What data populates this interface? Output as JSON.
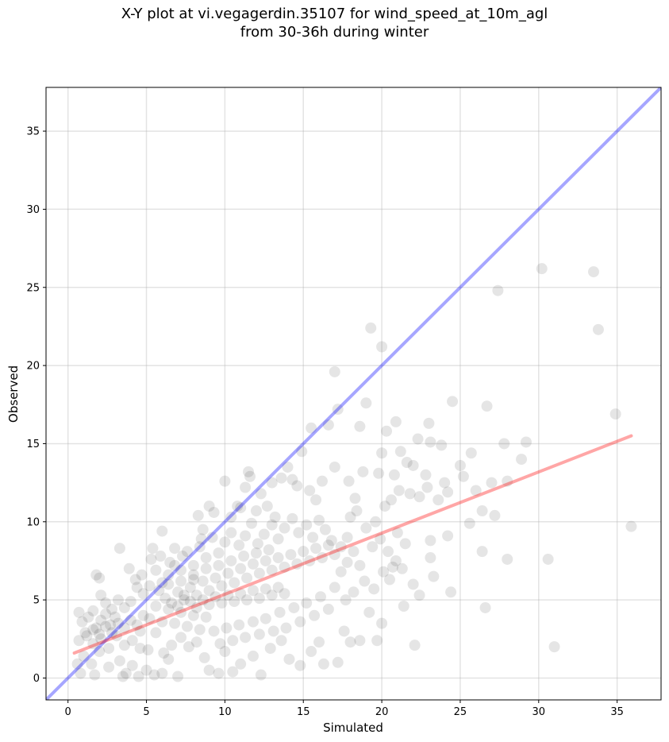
{
  "chart_data": {
    "type": "scatter",
    "title_line1": "X-Y plot at vi.vegagerdin.35107 for wind_speed_at_10m_agl",
    "title_line2": "from 30-36h during winter",
    "xlabel": "Simulated",
    "ylabel": "Observed",
    "xlim": [
      -1.4,
      37.8
    ],
    "ylim": [
      -1.4,
      37.8
    ],
    "xticks": [
      0,
      5,
      10,
      15,
      20,
      25,
      30,
      35
    ],
    "yticks": [
      0,
      5,
      10,
      15,
      20,
      25,
      30,
      35
    ],
    "grid": true,
    "point_color": "#000000",
    "point_alpha": 0.1,
    "identity_line": {
      "color": "#0000ff",
      "alpha": 0.35,
      "from": [
        -1.4,
        -1.4
      ],
      "to": [
        37.8,
        37.8
      ]
    },
    "fit_line": {
      "color": "#ff0000",
      "alpha": 0.35,
      "from": [
        0.4,
        1.6
      ],
      "to": [
        35.9,
        15.5
      ]
    },
    "points": [
      [
        0.7,
        4.2
      ],
      [
        0.9,
        3.6
      ],
      [
        1.1,
        2.9
      ],
      [
        1.3,
        3.9
      ],
      [
        1.6,
        4.3
      ],
      [
        1.8,
        3.2
      ],
      [
        2.1,
        3.7
      ],
      [
        2.4,
        4.1
      ],
      [
        2.7,
        3.4
      ],
      [
        3.0,
        3.9
      ],
      [
        1.0,
        1.4
      ],
      [
        1.5,
        0.9
      ],
      [
        2.0,
        1.7
      ],
      [
        2.6,
        0.7
      ],
      [
        3.3,
        1.1
      ],
      [
        3.7,
        0.3
      ],
      [
        4.1,
        0.8
      ],
      [
        4.6,
        1.9
      ],
      [
        5.0,
        0.5
      ],
      [
        5.5,
        0.2
      ],
      [
        6.0,
        0.3
      ],
      [
        6.4,
        1.2
      ],
      [
        7.0,
        0.1
      ],
      [
        0.6,
        0.9
      ],
      [
        0.8,
        0.3
      ],
      [
        1.7,
        0.2
      ],
      [
        3.5,
        0.1
      ],
      [
        4.5,
        0.1
      ],
      [
        1.8,
        6.6
      ],
      [
        2.0,
        6.4
      ],
      [
        2.1,
        5.3
      ],
      [
        3.3,
        8.3
      ],
      [
        3.9,
        7.0
      ],
      [
        4.3,
        6.3
      ],
      [
        4.7,
        6.6
      ],
      [
        5.3,
        7.6
      ],
      [
        5.4,
        8.3
      ],
      [
        5.9,
        7.8
      ],
      [
        6.0,
        9.4
      ],
      [
        6.5,
        7.4
      ],
      [
        6.8,
        8.3
      ],
      [
        7.3,
        7.8
      ],
      [
        8.0,
        6.3
      ],
      [
        8.3,
        10.4
      ],
      [
        8.5,
        8.9
      ],
      [
        8.6,
        9.5
      ],
      [
        9.3,
        10.6
      ],
      [
        9.0,
        11.0
      ],
      [
        10.0,
        12.6
      ],
      [
        10.4,
        10.3
      ],
      [
        10.8,
        11.0
      ],
      [
        11.0,
        10.9
      ],
      [
        11.3,
        12.2
      ],
      [
        11.6,
        12.9
      ],
      [
        11.5,
        13.2
      ],
      [
        12.3,
        11.8
      ],
      [
        12.0,
        10.7
      ],
      [
        12.7,
        11.0
      ],
      [
        13.0,
        12.5
      ],
      [
        13.2,
        10.3
      ],
      [
        13.6,
        12.8
      ],
      [
        14.0,
        13.5
      ],
      [
        14.3,
        12.7
      ],
      [
        14.6,
        12.3
      ],
      [
        14.9,
        14.5
      ],
      [
        15.4,
        12.0
      ],
      [
        15.8,
        11.4
      ],
      [
        16.2,
        12.6
      ],
      [
        15.5,
        16.0
      ],
      [
        16.6,
        16.2
      ],
      [
        17.0,
        13.5
      ],
      [
        17.2,
        17.2
      ],
      [
        17.9,
        12.6
      ],
      [
        18.3,
        11.5
      ],
      [
        18.8,
        13.2
      ],
      [
        18.6,
        16.1
      ],
      [
        19.0,
        17.6
      ],
      [
        19.3,
        22.4
      ],
      [
        17.0,
        19.6
      ],
      [
        19.8,
        13.1
      ],
      [
        20.0,
        14.4
      ],
      [
        20.3,
        15.8
      ],
      [
        20.0,
        21.2
      ],
      [
        20.8,
        13.0
      ],
      [
        20.9,
        16.4
      ],
      [
        21.2,
        14.5
      ],
      [
        21.6,
        13.8
      ],
      [
        22.0,
        13.6
      ],
      [
        22.3,
        15.3
      ],
      [
        23.0,
        16.3
      ],
      [
        22.8,
        13.0
      ],
      [
        23.1,
        15.1
      ],
      [
        23.8,
        14.9
      ],
      [
        24.5,
        17.7
      ],
      [
        24.0,
        12.5
      ],
      [
        25.0,
        13.6
      ],
      [
        25.2,
        12.9
      ],
      [
        25.7,
        14.4
      ],
      [
        26.4,
        10.7
      ],
      [
        26.0,
        12.0
      ],
      [
        26.7,
        17.4
      ],
      [
        27.0,
        12.5
      ],
      [
        27.4,
        24.8
      ],
      [
        27.8,
        15.0
      ],
      [
        28.0,
        12.6
      ],
      [
        28.9,
        14.0
      ],
      [
        29.2,
        15.1
      ],
      [
        30.2,
        26.2
      ],
      [
        33.5,
        26.0
      ],
      [
        33.8,
        22.3
      ],
      [
        34.9,
        16.9
      ],
      [
        35.9,
        9.7
      ],
      [
        30.6,
        7.6
      ],
      [
        31.0,
        2.0
      ],
      [
        27.2,
        10.4
      ],
      [
        26.4,
        8.1
      ],
      [
        26.6,
        4.5
      ],
      [
        28.0,
        7.6
      ],
      [
        24.4,
        5.5
      ],
      [
        23.1,
        7.7
      ],
      [
        23.3,
        6.5
      ],
      [
        22.1,
        2.1
      ],
      [
        22.4,
        5.3
      ],
      [
        21.4,
        4.6
      ],
      [
        22.0,
        6.0
      ],
      [
        23.1,
        8.8
      ],
      [
        24.2,
        9.1
      ],
      [
        25.6,
        9.9
      ],
      [
        20.9,
        7.5
      ],
      [
        20.5,
        6.3
      ],
      [
        20.0,
        3.5
      ],
      [
        19.7,
        2.4
      ],
      [
        19.2,
        4.2
      ],
      [
        18.6,
        2.4
      ],
      [
        18.0,
        2.3
      ],
      [
        17.6,
        3.0
      ],
      [
        17.2,
        1.0
      ],
      [
        16.3,
        0.9
      ],
      [
        16.0,
        2.3
      ],
      [
        15.5,
        1.7
      ],
      [
        14.8,
        0.8
      ],
      [
        14.1,
        1.2
      ],
      [
        13.6,
        2.4
      ],
      [
        12.9,
        1.9
      ],
      [
        12.3,
        0.2
      ],
      [
        11.8,
        1.4
      ],
      [
        11.0,
        0.9
      ],
      [
        10.5,
        0.4
      ],
      [
        10.0,
        1.7
      ],
      [
        9.6,
        0.3
      ],
      [
        9.0,
        0.5
      ],
      [
        8.7,
        1.3
      ],
      [
        8.2,
        2.3
      ],
      [
        7.7,
        2.0
      ],
      [
        7.2,
        2.6
      ],
      [
        6.6,
        2.1
      ],
      [
        6.1,
        1.6
      ],
      [
        5.6,
        2.9
      ],
      [
        5.1,
        1.8
      ],
      [
        4.6,
        3.0
      ],
      [
        4.1,
        2.4
      ],
      [
        3.6,
        2.1
      ],
      [
        3.1,
        2.7
      ],
      [
        2.6,
        1.9
      ],
      [
        2.1,
        2.5
      ],
      [
        1.6,
        2.2
      ],
      [
        1.2,
        2.7
      ],
      [
        0.7,
        2.4
      ],
      [
        19.0,
        9.6
      ],
      [
        19.6,
        10.0
      ],
      [
        20.2,
        11.0
      ],
      [
        20.6,
        11.4
      ],
      [
        21.1,
        12.0
      ],
      [
        21.8,
        11.8
      ],
      [
        22.4,
        11.6
      ],
      [
        22.9,
        12.2
      ],
      [
        23.6,
        11.4
      ],
      [
        24.2,
        11.9
      ],
      [
        18.4,
        10.7
      ],
      [
        18.0,
        10.3
      ],
      [
        17.8,
        9.0
      ],
      [
        17.4,
        8.4
      ],
      [
        16.8,
        8.8
      ],
      [
        16.4,
        9.5
      ],
      [
        16.0,
        10.1
      ],
      [
        15.6,
        9.0
      ],
      [
        15.2,
        9.8
      ],
      [
        14.7,
        9.3
      ],
      [
        14.3,
        10.2
      ],
      [
        13.8,
        9.6
      ],
      [
        13.4,
        8.9
      ],
      [
        13.0,
        9.8
      ],
      [
        12.5,
        9.2
      ],
      [
        12.1,
        8.6
      ],
      [
        11.7,
        9.9
      ],
      [
        11.3,
        9.1
      ],
      [
        10.9,
        8.5
      ],
      [
        10.4,
        9.3
      ],
      [
        10.0,
        8.7
      ],
      [
        9.6,
        8.0
      ],
      [
        9.2,
        9.0
      ],
      [
        8.8,
        7.7
      ],
      [
        8.4,
        8.4
      ],
      [
        8.0,
        7.2
      ],
      [
        7.6,
        8.1
      ],
      [
        7.2,
        6.9
      ],
      [
        6.8,
        7.2
      ],
      [
        6.4,
        6.6
      ],
      [
        6.0,
        6.1
      ],
      [
        5.6,
        6.9
      ],
      [
        5.2,
        5.9
      ],
      [
        4.8,
        5.4
      ],
      [
        4.4,
        5.8
      ],
      [
        4.0,
        4.9
      ],
      [
        3.6,
        4.5
      ],
      [
        3.2,
        5.0
      ],
      [
        2.8,
        4.4
      ],
      [
        2.4,
        4.8
      ],
      [
        18.2,
        5.5
      ],
      [
        17.7,
        5.0
      ],
      [
        17.0,
        5.8
      ],
      [
        16.6,
        4.4
      ],
      [
        16.1,
        5.2
      ],
      [
        15.7,
        4.0
      ],
      [
        15.2,
        4.8
      ],
      [
        14.8,
        3.6
      ],
      [
        14.4,
        4.5
      ],
      [
        13.9,
        3.2
      ],
      [
        13.5,
        4.2
      ],
      [
        13.1,
        3.0
      ],
      [
        12.6,
        3.8
      ],
      [
        12.2,
        2.8
      ],
      [
        11.8,
        3.6
      ],
      [
        11.3,
        2.6
      ],
      [
        10.9,
        3.4
      ],
      [
        10.5,
        2.4
      ],
      [
        10.1,
        3.2
      ],
      [
        9.7,
        2.2
      ],
      [
        9.3,
        3.0
      ],
      [
        8.8,
        3.9
      ],
      [
        8.4,
        3.1
      ],
      [
        8.0,
        4.0
      ],
      [
        7.6,
        3.3
      ],
      [
        7.2,
        4.2
      ],
      [
        6.8,
        3.5
      ],
      [
        6.4,
        4.4
      ],
      [
        6.0,
        3.6
      ],
      [
        5.6,
        4.6
      ],
      [
        5.2,
        3.8
      ],
      [
        4.8,
        4.0
      ],
      [
        4.4,
        3.4
      ],
      [
        4.0,
        3.7
      ],
      [
        3.6,
        3.2
      ],
      [
        3.2,
        3.5
      ],
      [
        2.8,
        2.9
      ],
      [
        2.4,
        3.3
      ],
      [
        2.0,
        2.8
      ],
      [
        1.6,
        3.1
      ],
      [
        7.0,
        5.5
      ],
      [
        7.4,
        5.0
      ],
      [
        7.8,
        5.8
      ],
      [
        8.2,
        5.3
      ],
      [
        8.6,
        6.2
      ],
      [
        9.0,
        5.6
      ],
      [
        9.4,
        6.4
      ],
      [
        9.8,
        5.9
      ],
      [
        10.2,
        6.7
      ],
      [
        10.6,
        6.1
      ],
      [
        11.0,
        7.0
      ],
      [
        11.4,
        6.4
      ],
      [
        11.8,
        7.3
      ],
      [
        12.2,
        6.7
      ],
      [
        12.6,
        7.5
      ],
      [
        13.0,
        6.9
      ],
      [
        13.4,
        7.7
      ],
      [
        13.8,
        7.1
      ],
      [
        14.2,
        7.9
      ],
      [
        14.6,
        7.3
      ],
      [
        15.0,
        8.1
      ],
      [
        15.4,
        7.5
      ],
      [
        15.8,
        8.3
      ],
      [
        16.2,
        7.7
      ],
      [
        16.6,
        8.5
      ],
      [
        17.0,
        7.9
      ],
      [
        17.4,
        6.8
      ],
      [
        17.8,
        7.4
      ],
      [
        18.2,
        8.1
      ],
      [
        18.6,
        7.2
      ],
      [
        6.2,
        5.1
      ],
      [
        6.6,
        4.8
      ],
      [
        7.0,
        4.6
      ],
      [
        7.4,
        5.3
      ],
      [
        7.8,
        4.9
      ],
      [
        8.2,
        4.5
      ],
      [
        8.6,
        5.0
      ],
      [
        9.0,
        4.7
      ],
      [
        9.4,
        5.2
      ],
      [
        9.8,
        4.8
      ],
      [
        10.2,
        5.3
      ],
      [
        10.6,
        4.9
      ],
      [
        11.0,
        5.4
      ],
      [
        11.4,
        5.0
      ],
      [
        11.8,
        5.6
      ],
      [
        12.2,
        5.1
      ],
      [
        12.6,
        5.7
      ],
      [
        13.0,
        5.3
      ],
      [
        13.4,
        5.8
      ],
      [
        13.8,
        5.4
      ],
      [
        5.8,
        5.6
      ],
      [
        6.4,
        6.0
      ],
      [
        7.2,
        6.2
      ],
      [
        8.0,
        6.6
      ],
      [
        8.8,
        7.0
      ],
      [
        9.6,
        7.2
      ],
      [
        10.4,
        7.5
      ],
      [
        11.2,
        7.8
      ],
      [
        12.0,
        8.0
      ],
      [
        12.8,
        8.2
      ],
      [
        19.4,
        8.4
      ],
      [
        19.9,
        8.9
      ],
      [
        20.4,
        8.1
      ],
      [
        21.0,
        9.3
      ],
      [
        21.5,
        8.6
      ],
      [
        18.9,
        6.2
      ],
      [
        19.5,
        5.7
      ],
      [
        20.1,
        6.8
      ],
      [
        20.7,
        7.1
      ],
      [
        21.3,
        7.0
      ]
    ]
  }
}
